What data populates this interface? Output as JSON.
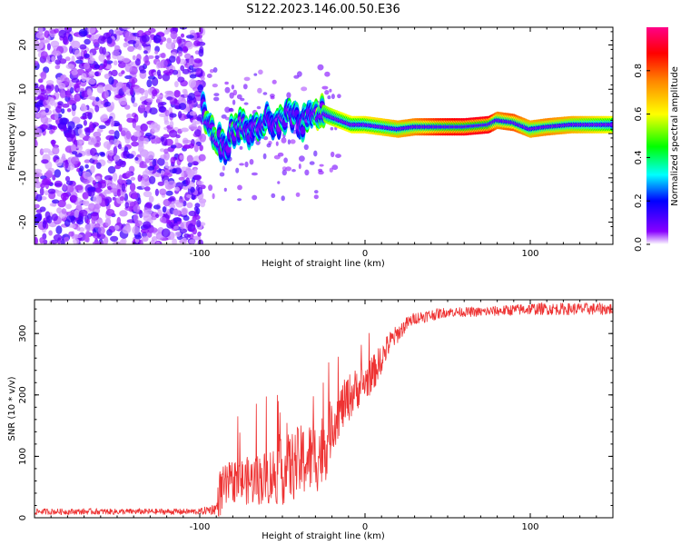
{
  "title": "S122.2023.146.00.50.E36",
  "chart_data": [
    {
      "type": "heatmap",
      "xlabel": "Height of straight line (km)",
      "ylabel": "Frequency (Hz)",
      "xlim": [
        -200,
        150
      ],
      "ylim": [
        -25,
        24
      ],
      "x_ticks": [
        -100,
        0,
        100
      ],
      "y_ticks": [
        20,
        10,
        0,
        -10,
        -20
      ],
      "colorbar": {
        "label": "Normalized spectral amplitude",
        "range": [
          0,
          1
        ],
        "ticks": [
          0.0,
          0.2,
          0.4,
          0.6,
          0.8
        ],
        "colors": [
          "#ffffff",
          "#8800ff",
          "#0000ff",
          "#00ffff",
          "#00ff00",
          "#ffff00",
          "#ff8800",
          "#ff0000",
          "#ff0088"
        ]
      },
      "noise_region_x": [
        -200,
        -98
      ],
      "ridge": [
        {
          "x": -98,
          "f": 6,
          "a": 0.35
        },
        {
          "x": -95,
          "f": 2,
          "a": 0.45
        },
        {
          "x": -92,
          "f": 0,
          "a": 0.4
        },
        {
          "x": -88,
          "f": -2,
          "a": 0.4
        },
        {
          "x": -85,
          "f": -4,
          "a": 0.35
        },
        {
          "x": -80,
          "f": 1,
          "a": 0.35
        },
        {
          "x": -75,
          "f": 2,
          "a": 0.35
        },
        {
          "x": -70,
          "f": 0,
          "a": 0.3
        },
        {
          "x": -65,
          "f": 2,
          "a": 0.35
        },
        {
          "x": -60,
          "f": 3,
          "a": 0.35
        },
        {
          "x": -55,
          "f": 1,
          "a": 0.3
        },
        {
          "x": -50,
          "f": 3,
          "a": 0.35
        },
        {
          "x": -45,
          "f": 4,
          "a": 0.35
        },
        {
          "x": -40,
          "f": 2,
          "a": 0.3
        },
        {
          "x": -35,
          "f": 3,
          "a": 0.35
        },
        {
          "x": -30,
          "f": 4,
          "a": 0.4
        },
        {
          "x": -27,
          "f": 5,
          "a": 0.5
        },
        {
          "x": -22,
          "f": 4,
          "a": 0.55
        },
        {
          "x": -15,
          "f": 3,
          "a": 0.6
        },
        {
          "x": -8,
          "f": 2,
          "a": 0.6
        },
        {
          "x": 0,
          "f": 2,
          "a": 0.62
        },
        {
          "x": 10,
          "f": 1.5,
          "a": 0.65
        },
        {
          "x": 20,
          "f": 1,
          "a": 0.7
        },
        {
          "x": 30,
          "f": 1.5,
          "a": 0.75
        },
        {
          "x": 45,
          "f": 1.5,
          "a": 0.85
        },
        {
          "x": 60,
          "f": 1.5,
          "a": 0.9
        },
        {
          "x": 75,
          "f": 2,
          "a": 0.9
        },
        {
          "x": 80,
          "f": 3,
          "a": 0.75
        },
        {
          "x": 90,
          "f": 2.5,
          "a": 0.8
        },
        {
          "x": 100,
          "f": 1,
          "a": 0.7
        },
        {
          "x": 110,
          "f": 1.5,
          "a": 0.75
        },
        {
          "x": 125,
          "f": 2,
          "a": 0.7
        },
        {
          "x": 150,
          "f": 2,
          "a": 0.6
        }
      ]
    },
    {
      "type": "line",
      "xlabel": "Height of straight line (km)",
      "ylabel": "SNR (10 * v/v)",
      "xlim": [
        -200,
        150
      ],
      "ylim": [
        0,
        355
      ],
      "x_ticks": [
        -100,
        0,
        100
      ],
      "y_ticks": [
        0,
        100,
        200,
        300
      ],
      "color": "#ee3333",
      "series": [
        {
          "x": [
            -200,
            -150,
            -100,
            -90,
            -88,
            -80,
            -70,
            -60,
            -50,
            -40,
            -30,
            -25,
            -20,
            -15,
            -10,
            -5,
            0,
            5,
            10,
            15,
            20,
            25,
            30,
            40,
            50,
            70,
            100,
            150
          ],
          "y": [
            10,
            10,
            10,
            15,
            40,
            60,
            60,
            65,
            75,
            90,
            100,
            110,
            150,
            175,
            195,
            210,
            220,
            235,
            260,
            285,
            300,
            315,
            325,
            330,
            335,
            335,
            340,
            340
          ],
          "noise": [
            5,
            5,
            5,
            10,
            40,
            35,
            40,
            45,
            55,
            60,
            60,
            65,
            45,
            40,
            40,
            35,
            30,
            30,
            25,
            20,
            15,
            12,
            10,
            10,
            8,
            8,
            10,
            10
          ]
        }
      ]
    }
  ]
}
